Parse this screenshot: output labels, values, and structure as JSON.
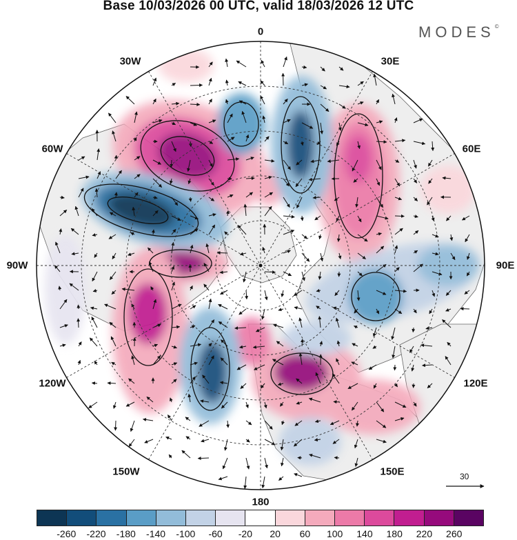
{
  "title": "Base 10/03/2026 00 UTC, valid 18/03/2026 12 UTC",
  "brand": {
    "name": "MODES",
    "mark": "©"
  },
  "longitude_labels": {
    "north": "0",
    "south": "180",
    "west": "90W",
    "east": "90E",
    "w30": "30W",
    "e30": "30E",
    "w60": "60W",
    "e60": "60E",
    "w120": "120W",
    "e120": "120E",
    "w150": "150W",
    "e150": "150E"
  },
  "reference_vector": {
    "label": "30"
  },
  "colorbar": {
    "colors": [
      "#0d3554",
      "#124d7a",
      "#2a71a3",
      "#5a9dc6",
      "#92bcd9",
      "#c2d2e6",
      "#e6e4f0",
      "#ffffff",
      "#fad7dc",
      "#f4aabc",
      "#ec7aa8",
      "#dc4a9c",
      "#c11e90",
      "#960a7c",
      "#5a0462"
    ],
    "ticks": [
      "-260",
      "-220",
      "-180",
      "-140",
      "-100",
      "-60",
      "-20",
      "20",
      "60",
      "100",
      "140",
      "180",
      "220",
      "260"
    ]
  },
  "anomaly_centers": [
    {
      "kind": "positive",
      "lon": -40,
      "lat": 52,
      "value": 260
    },
    {
      "kind": "negative",
      "lon": -70,
      "lat": 45,
      "value": -260
    },
    {
      "kind": "positive",
      "lon": -95,
      "lat": 58,
      "value": 260
    },
    {
      "kind": "positive",
      "lon": -110,
      "lat": 40,
      "value": 200
    },
    {
      "kind": "negative",
      "lon": -150,
      "lat": 50,
      "value": -200
    },
    {
      "kind": "positive",
      "lon": -170,
      "lat": 62,
      "value": 180
    },
    {
      "kind": "positive",
      "lon": 140,
      "lat": 50,
      "value": 260
    },
    {
      "kind": "negative",
      "lon": 100,
      "lat": 55,
      "value": -160
    },
    {
      "kind": "negative",
      "lon": 85,
      "lat": 30,
      "value": -140
    },
    {
      "kind": "positive",
      "lon": 30,
      "lat": 50,
      "value": 200
    },
    {
      "kind": "negative",
      "lon": 10,
      "lat": 58,
      "value": -220
    },
    {
      "kind": "negative",
      "lon": -10,
      "lat": 48,
      "value": -140
    },
    {
      "kind": "positive",
      "lon": 60,
      "lat": 20,
      "value": 60
    }
  ]
}
